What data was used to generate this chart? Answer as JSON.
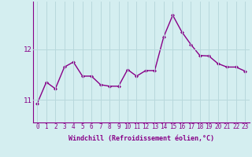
{
  "x": [
    0,
    1,
    2,
    3,
    4,
    5,
    6,
    7,
    8,
    9,
    10,
    11,
    12,
    13,
    14,
    15,
    16,
    17,
    18,
    19,
    20,
    21,
    22,
    23
  ],
  "y": [
    10.93,
    11.35,
    11.22,
    11.65,
    11.75,
    11.47,
    11.47,
    11.3,
    11.27,
    11.27,
    11.6,
    11.47,
    11.58,
    11.58,
    12.25,
    12.68,
    12.35,
    12.1,
    11.88,
    11.87,
    11.72,
    11.65,
    11.65,
    11.57
  ],
  "line_color": "#880088",
  "marker": "D",
  "marker_size": 2,
  "bg_color": "#d4eef0",
  "grid_color": "#b8d8dc",
  "xlabel": "Windchill (Refroidissement éolien,°C)",
  "xlabel_color": "#880088",
  "tick_color": "#880088",
  "ytick_labels": [
    "11",
    "12"
  ],
  "ytick_vals": [
    11,
    12
  ],
  "ylim": [
    10.55,
    12.95
  ],
  "xlim": [
    -0.5,
    23.5
  ],
  "line_width": 1.0,
  "font_family": "monospace",
  "tick_fontsize": 5.5,
  "xlabel_fontsize": 6.0,
  "ytick_fontsize": 6.5
}
